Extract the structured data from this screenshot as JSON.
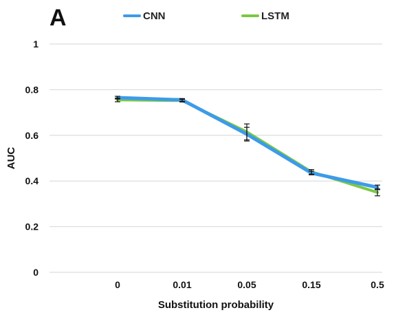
{
  "panel_label": "A",
  "chart_data": {
    "type": "line",
    "title": "",
    "xlabel": "Substitution probability",
    "ylabel": "AUC",
    "categories": [
      "0",
      "0.01",
      "0.05",
      "0.15",
      "0.5"
    ],
    "ylim": [
      0,
      1
    ],
    "yticks": [
      0,
      0.2,
      0.4,
      0.6,
      0.8,
      1
    ],
    "ytick_labels": [
      "0",
      "0.2",
      "0.4",
      "0.6",
      "0.8",
      "1"
    ],
    "grid": true,
    "legend_position": "top",
    "series": [
      {
        "name": "LSTM",
        "color": "#7ac943",
        "values": [
          0.755,
          0.752,
          0.615,
          0.44,
          0.35
        ],
        "error": [
          0.008,
          0.006,
          0.035,
          0.01,
          0.015
        ]
      },
      {
        "name": "CNN",
        "color": "#3d9be9",
        "values": [
          0.765,
          0.755,
          0.605,
          0.435,
          0.372
        ],
        "error": [
          0.006,
          0.006,
          0.03,
          0.008,
          0.01
        ]
      }
    ]
  }
}
